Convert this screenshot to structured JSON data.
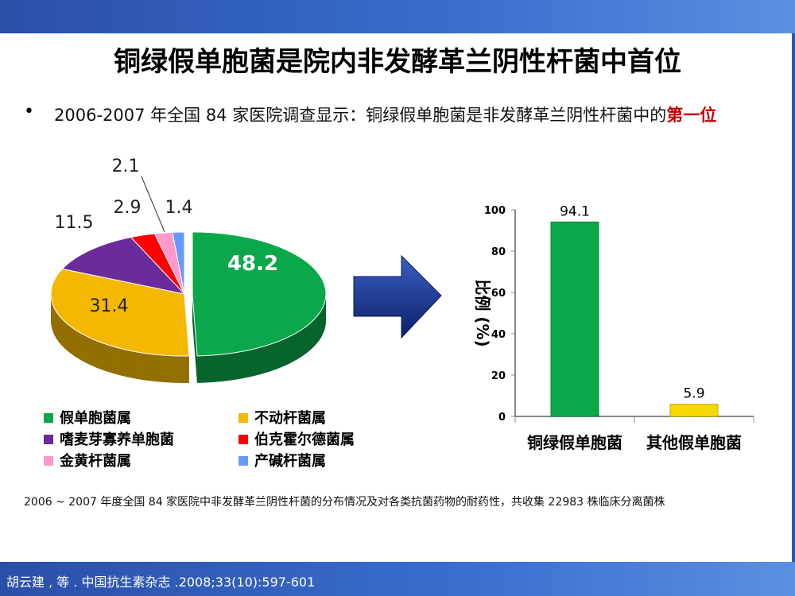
{
  "title": "铜绿假单胞菌是院内非发酵革兰阴性杆菌中首位",
  "bullet": {
    "text": "2006-2007 年全国 84 家医院调查显示：铜绿假单胞菌是非发酵革兰阴性杆菌中的",
    "highlight": "第一位",
    "highlight_color": "#c00000"
  },
  "chart_data": [
    {
      "type": "pie",
      "style": "3d-exploded",
      "slices": [
        {
          "label": "假单胞菌属",
          "value": 48.2,
          "color": "#0aa84a"
        },
        {
          "label": "不动杆菌属",
          "value": 31.4,
          "color": "#f5b800"
        },
        {
          "label": "嗜麦芽寡养单胞菌",
          "value": 11.5,
          "color": "#6b2b9b"
        },
        {
          "label": "伯克霍尔德菌属",
          "value": 2.9,
          "color": "#ff0000"
        },
        {
          "label": "金黄杆菌属",
          "value": 2.1,
          "color": "#ff99cc"
        },
        {
          "label": "产碱杆菌属",
          "value": 1.4,
          "color": "#6699ff"
        }
      ],
      "data_labels": [
        "48.2",
        "31.4",
        "11.5",
        "2.9",
        "2.1",
        "1.4"
      ],
      "legend_placement": "bottom"
    },
    {
      "type": "bar",
      "categories": [
        "铜绿假单胞菌",
        "其他假单胞菌"
      ],
      "values": [
        94.1,
        5.9
      ],
      "colors": [
        "#0aa84a",
        "#f5d800"
      ],
      "data_labels": [
        "94.1",
        "5.9"
      ],
      "ylabel": "比例 (%)",
      "ylim": [
        0,
        100
      ],
      "yticks": [
        "0",
        "20",
        "40",
        "60",
        "80",
        "100"
      ],
      "grid": false
    }
  ],
  "note": "2006 ~ 2007 年度全国 84 家医院中非发酵革兰阴性杆菌的分布情况及对各类抗菌药物的耐药性，共收集 22983 株临床分离菌株",
  "citation": "胡云建 , 等 . 中国抗生素杂志 .2008;33(10):597-601"
}
